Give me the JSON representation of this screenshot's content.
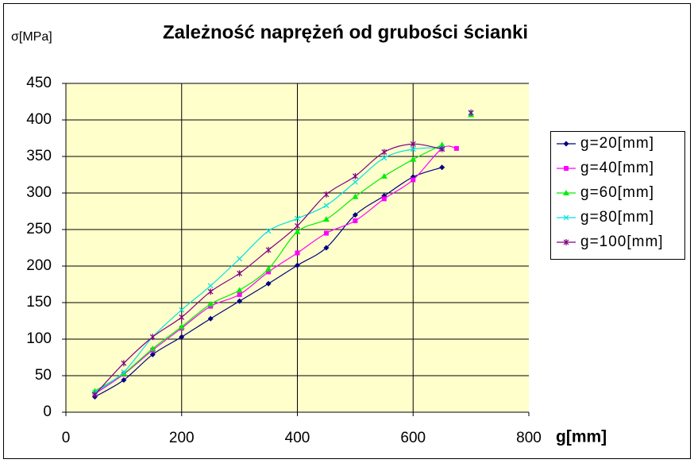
{
  "chart_data": {
    "type": "line",
    "title": "Zależność naprężeń od grubości ścianki",
    "xlabel": "g[mm]",
    "ylabel": "σ[MPa]",
    "x": [
      50,
      100,
      150,
      200,
      250,
      300,
      350,
      400,
      450,
      500,
      550,
      600,
      650,
      675,
      700
    ],
    "series": [
      {
        "name": "g=20[mm]",
        "color": "#000080",
        "marker": "diamond",
        "values": [
          21,
          44,
          79,
          103,
          128,
          152,
          176,
          201,
          225,
          270,
          296,
          322,
          335,
          null,
          null
        ]
      },
      {
        "name": "g=40[mm]",
        "color": "#ff00ff",
        "marker": "square",
        "values": [
          25,
          52,
          85,
          115,
          145,
          161,
          192,
          218,
          245,
          262,
          292,
          318,
          361,
          361,
          null
        ]
      },
      {
        "name": "g=60[mm]",
        "color": "#00ee00",
        "marker": "triangle",
        "values": [
          29,
          53,
          87,
          117,
          148,
          167,
          196,
          247,
          264,
          295,
          323,
          346,
          366,
          null,
          407
        ]
      },
      {
        "name": "g=80[mm]",
        "color": "#00e0e0",
        "marker": "x",
        "values": [
          27,
          55,
          103,
          140,
          173,
          210,
          248,
          265,
          283,
          315,
          348,
          360,
          362,
          null,
          409
        ]
      },
      {
        "name": "g=100[mm]",
        "color": "#800080",
        "marker": "star",
        "values": [
          24,
          67,
          103,
          130,
          165,
          190,
          222,
          255,
          298,
          323,
          356,
          367,
          360,
          null,
          410
        ]
      }
    ],
    "xlim": [
      0,
      800
    ],
    "xticks": [
      0,
      200,
      400,
      600,
      800
    ],
    "ylim": [
      0,
      450
    ],
    "yticks": [
      0,
      50,
      100,
      150,
      200,
      250,
      300,
      350,
      400,
      450
    ],
    "grid": true,
    "legend": "right"
  }
}
